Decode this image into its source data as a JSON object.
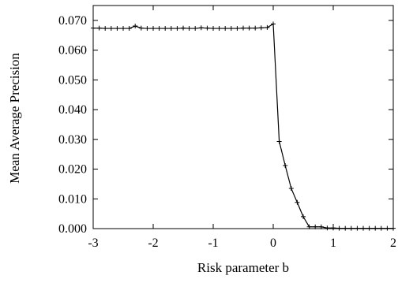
{
  "chart_data": {
    "type": "line",
    "title": "",
    "xlabel": "Risk parameter b",
    "ylabel": "Mean Average Precision",
    "xlim": [
      -3,
      2
    ],
    "ylim": [
      0,
      0.075
    ],
    "xticks": [
      -3,
      -2,
      -1,
      0,
      1,
      2
    ],
    "xtick_labels": [
      "-3",
      "-2",
      "-1",
      "0",
      "1",
      "2"
    ],
    "yticks": [
      0,
      0.01,
      0.02,
      0.03,
      0.04,
      0.05,
      0.06,
      0.07
    ],
    "ytick_labels": [
      "0.000",
      "0.010",
      "0.020",
      "0.030",
      "0.040",
      "0.050",
      "0.060",
      "0.070"
    ],
    "grid": false,
    "legend": "none",
    "line_color": "#000000",
    "marker": "plus",
    "series": [
      {
        "x": [
          -3.0,
          -2.9,
          -2.8,
          -2.7,
          -2.6,
          -2.5,
          -2.4,
          -2.3,
          -2.2,
          -2.1,
          -2.0,
          -1.9,
          -1.8,
          -1.7,
          -1.6,
          -1.5,
          -1.4,
          -1.3,
          -1.2,
          -1.1,
          -1.0,
          -0.9,
          -0.8,
          -0.7,
          -0.6,
          -0.5,
          -0.4,
          -0.3,
          -0.2,
          -0.1,
          0.0,
          0.1,
          0.2,
          0.3,
          0.4,
          0.5,
          0.6,
          0.7,
          0.8,
          0.9,
          1.0,
          1.1,
          1.2,
          1.3,
          1.4,
          1.5,
          1.6,
          1.7,
          1.8,
          1.9,
          2.0
        ],
        "values": [
          0.0674,
          0.0674,
          0.0673,
          0.0673,
          0.0673,
          0.0673,
          0.0673,
          0.0681,
          0.0674,
          0.0673,
          0.0673,
          0.0673,
          0.0673,
          0.0673,
          0.0673,
          0.0674,
          0.0673,
          0.0673,
          0.0675,
          0.0674,
          0.0673,
          0.0673,
          0.0673,
          0.0673,
          0.0673,
          0.0674,
          0.0674,
          0.0674,
          0.0675,
          0.0676,
          0.0688,
          0.0293,
          0.0212,
          0.0135,
          0.0088,
          0.004,
          0.0006,
          0.0006,
          0.0006,
          0.0002,
          0.0002,
          0.0001,
          0.0001,
          0.0001,
          0.0001,
          0.0001,
          0.0001,
          0.0001,
          0.0001,
          0.0001,
          0.0001
        ]
      }
    ]
  }
}
